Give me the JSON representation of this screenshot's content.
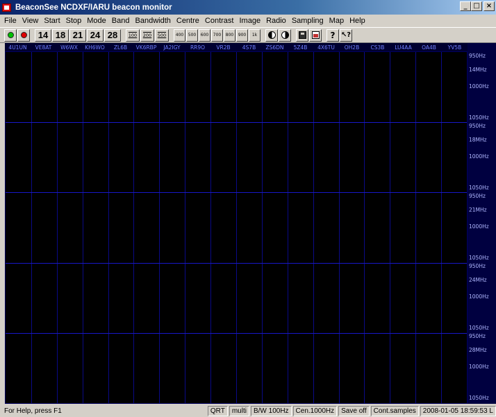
{
  "window": {
    "title": "BeaconSee NCDXF/IARU beacon monitor",
    "minimize_label": "_",
    "maximize_label": "□",
    "close_label": "×"
  },
  "menu": [
    "File",
    "View",
    "Start",
    "Stop",
    "Mode",
    "Band",
    "Bandwidth",
    "Centre",
    "Contrast",
    "Image",
    "Radio",
    "Sampling",
    "Map",
    "Help"
  ],
  "toolbar": {
    "start_icon_color": "#00c000",
    "stop_icon_color": "#e00000",
    "bands": [
      "14",
      "18",
      "21",
      "24",
      "28"
    ],
    "bandwidths": [
      "100",
      "200",
      "500"
    ],
    "centres": [
      "400",
      "500",
      "600",
      "700",
      "800",
      "900",
      "1k"
    ],
    "help_label": "?",
    "context_help_label": "↖?"
  },
  "callsigns": [
    "4U1UN",
    "VE8AT",
    "W6WX",
    "KH6WO",
    "ZL6B",
    "VK6RBP",
    "JA2IGY",
    "RR9O",
    "VR2B",
    "4S7B",
    "ZS6DN",
    "5Z4B",
    "4X6TU",
    "OH2B",
    "CS3B",
    "LU4AA",
    "OA4B",
    "YV5B"
  ],
  "bands_axis": [
    {
      "top": "950Hz",
      "band": "14MHz",
      "mid": "1000Hz",
      "bottom": "1050Hz"
    },
    {
      "top": "950Hz",
      "band": "18MHz",
      "mid": "1000Hz",
      "bottom": "1050Hz"
    },
    {
      "top": "950Hz",
      "band": "21MHz",
      "mid": "1000Hz",
      "bottom": "1050Hz"
    },
    {
      "top": "950Hz",
      "band": "24MHz",
      "mid": "1000Hz",
      "bottom": "1050Hz"
    },
    {
      "top": "950Hz",
      "band": "28MHz",
      "mid": "1000Hz",
      "bottom": "1050Hz"
    }
  ],
  "status": {
    "help": "For Help, press F1",
    "qrt": "QRT",
    "mode": "multi",
    "bandwidth": "B/W 100Hz",
    "centre": "Cen.1000Hz",
    "save": "Save off",
    "sampling": "Cont.samples",
    "datetime": "2008-01-05 18:59:53 L"
  },
  "colors": {
    "waterfall_bg": "#000000",
    "grid_line": "#1818c8",
    "axis_text": "#b0b8ff",
    "callsign_text": "#7080ff"
  }
}
